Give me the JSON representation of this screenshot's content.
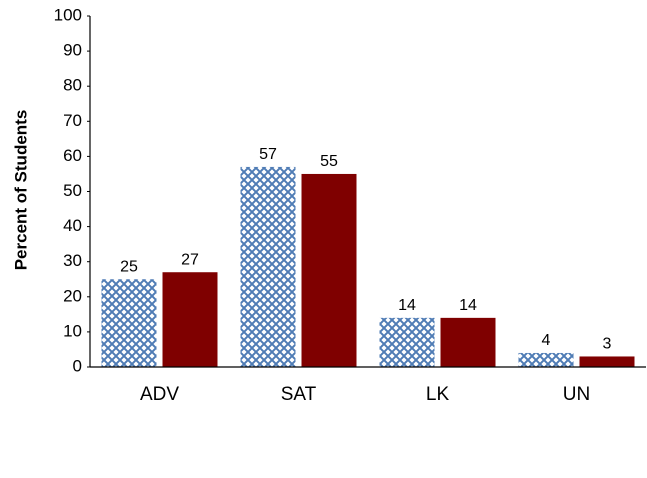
{
  "chart_data": {
    "type": "bar",
    "y_label": "Percent of Students",
    "categories": [
      "ADV",
      "SAT",
      "LK",
      "UN"
    ],
    "series": [
      {
        "color": "#4f7cb5",
        "hatch": "crosshatch",
        "values": [
          25,
          57,
          14,
          4
        ]
      },
      {
        "color": "#7f0000",
        "values": [
          27,
          55,
          14,
          3
        ]
      }
    ],
    "ylim": [
      0,
      100
    ],
    "yticks": [
      0,
      10,
      20,
      30,
      40,
      50,
      60,
      70,
      80,
      90,
      100
    ]
  }
}
